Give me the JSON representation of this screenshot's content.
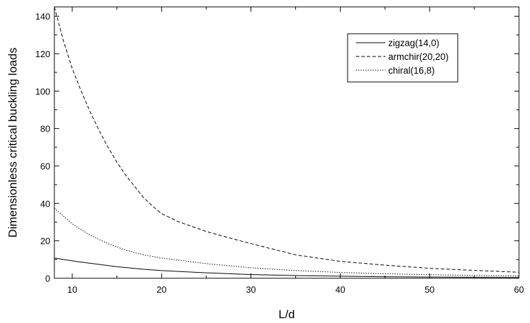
{
  "chart_data": {
    "type": "line",
    "xlabel": "L/d",
    "ylabel": "Dimensionless critical buckling loads",
    "xlim": [
      8,
      60
    ],
    "ylim": [
      0,
      145
    ],
    "xticks": [
      10,
      20,
      30,
      40,
      50,
      60
    ],
    "yticks": [
      0,
      20,
      40,
      60,
      80,
      100,
      120,
      140
    ],
    "grid": false,
    "legend_position": "top-right",
    "series": [
      {
        "name": "zigzag(14,0)",
        "line_style": "solid",
        "x": [
          8,
          10,
          12,
          15,
          18,
          20,
          25,
          30,
          35,
          40,
          45,
          50,
          55,
          60
        ],
        "y": [
          10.8,
          9.3,
          8.0,
          6.2,
          4.8,
          4.1,
          2.9,
          2.0,
          1.45,
          1.1,
          0.85,
          0.65,
          0.5,
          0.4
        ]
      },
      {
        "name": "armchir(20,20)",
        "line_style": "dashed",
        "x": [
          8,
          9,
          10,
          11,
          12,
          13,
          14,
          15,
          16,
          17,
          18,
          19,
          20,
          22,
          25,
          28,
          30,
          35,
          40,
          45,
          50,
          55,
          60
        ],
        "y": [
          145,
          127,
          112,
          100,
          89,
          79,
          70,
          62,
          55,
          49,
          43,
          38.5,
          34.5,
          30,
          25,
          21,
          18.5,
          12.5,
          9,
          7,
          5.3,
          4.2,
          3.2
        ]
      },
      {
        "name": "chiral(16,8)",
        "line_style": "dotted",
        "x": [
          8,
          10,
          12,
          14,
          16,
          18,
          20,
          25,
          30,
          35,
          40,
          45,
          50,
          55,
          60
        ],
        "y": [
          37.5,
          29,
          23,
          18.5,
          15,
          12.5,
          10.8,
          7.8,
          5.6,
          4.1,
          3.1,
          2.4,
          1.9,
          1.5,
          1.2
        ]
      }
    ]
  }
}
